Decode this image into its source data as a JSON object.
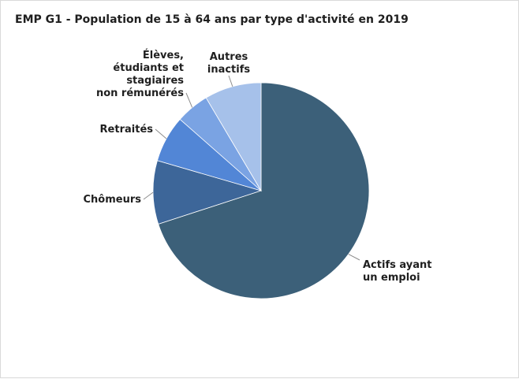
{
  "title": "EMP G1 - Population de 15 à 64 ans par type d'activité en 2019",
  "chart_data": {
    "type": "pie",
    "title": "EMP G1 - Population de 15 à 64 ans par type d'activité en 2019",
    "start_angle_deg": 0,
    "direction": "clockwise",
    "slices": [
      {
        "label": [
          "Actifs ayant",
          "un emploi"
        ],
        "value": 70.0,
        "color": "#3c6079"
      },
      {
        "label": [
          "Chômeurs"
        ],
        "value": 9.5,
        "color": "#3d6699"
      },
      {
        "label": [
          "Retraités"
        ],
        "value": 7.0,
        "color": "#5286d6"
      },
      {
        "label": [
          "Élèves,",
          "étudiants et",
          "stagiaires",
          "non rémunérés"
        ],
        "value": 5.0,
        "color": "#7aa3e3"
      },
      {
        "label": [
          "Autres",
          "inactifs"
        ],
        "value": 8.5,
        "color": "#a6c1ea"
      }
    ],
    "legend": "none",
    "data_labels": "outside with leader lines"
  }
}
